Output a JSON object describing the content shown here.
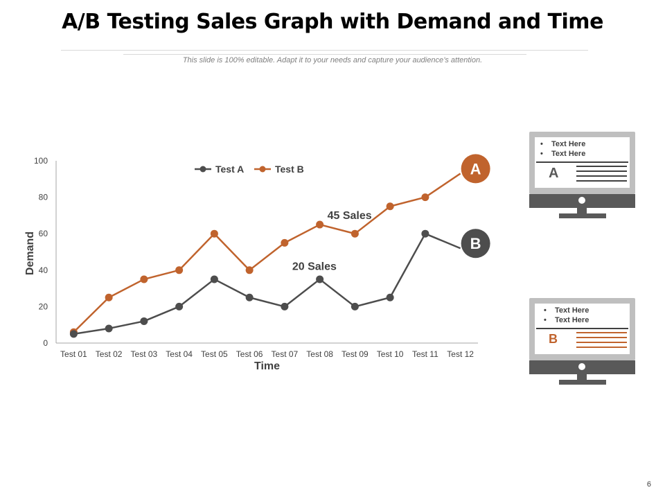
{
  "slide": {
    "title": "A/B Testing Sales Graph with Demand and Time",
    "subtitle": "This slide is 100% editable. Adapt it to your needs and capture your audience’s attention.",
    "page_number": "6"
  },
  "colors": {
    "test_a": "#4d4d4d",
    "test_b": "#c0632d",
    "axis": "#a6a6a6",
    "monitor_frame": "#bfbfbf",
    "monitor_dark": "#595959"
  },
  "chart_data": {
    "type": "line",
    "categories": [
      "Test 01",
      "Test 02",
      "Test 03",
      "Test 04",
      "Test 05",
      "Test 06",
      "Test 07",
      "Test 08",
      "Test 09",
      "Test 10",
      "Test 11",
      "Test 12"
    ],
    "series": [
      {
        "name": "Test A",
        "values": [
          5,
          8,
          12,
          20,
          35,
          25,
          20,
          35,
          20,
          25,
          60,
          52
        ]
      },
      {
        "name": "Test B",
        "values": [
          6,
          25,
          35,
          40,
          60,
          40,
          55,
          65,
          60,
          75,
          80,
          93
        ]
      }
    ],
    "xlabel": "Time",
    "ylabel": "Demand",
    "ylim": [
      0,
      100
    ],
    "yticks": [
      "0",
      "20",
      "40",
      "60",
      "80",
      "100"
    ],
    "legend": "top",
    "grid": false,
    "annotations": [
      {
        "text": "45 Sales",
        "x": "Test 08",
        "y": 70
      },
      {
        "text": "20 Sales",
        "x": "Test 07",
        "y": 42
      }
    ],
    "end_badges": [
      {
        "label": "A",
        "series": "Test B"
      },
      {
        "label": "B",
        "series": "Test A"
      }
    ]
  },
  "panels": [
    {
      "letter": "A",
      "bullets": [
        "Text Here",
        "Text Here"
      ],
      "accent": "#404040"
    },
    {
      "letter": "B",
      "bullets": [
        "Text Here",
        "Text Here"
      ],
      "accent": "#c0632d"
    }
  ]
}
